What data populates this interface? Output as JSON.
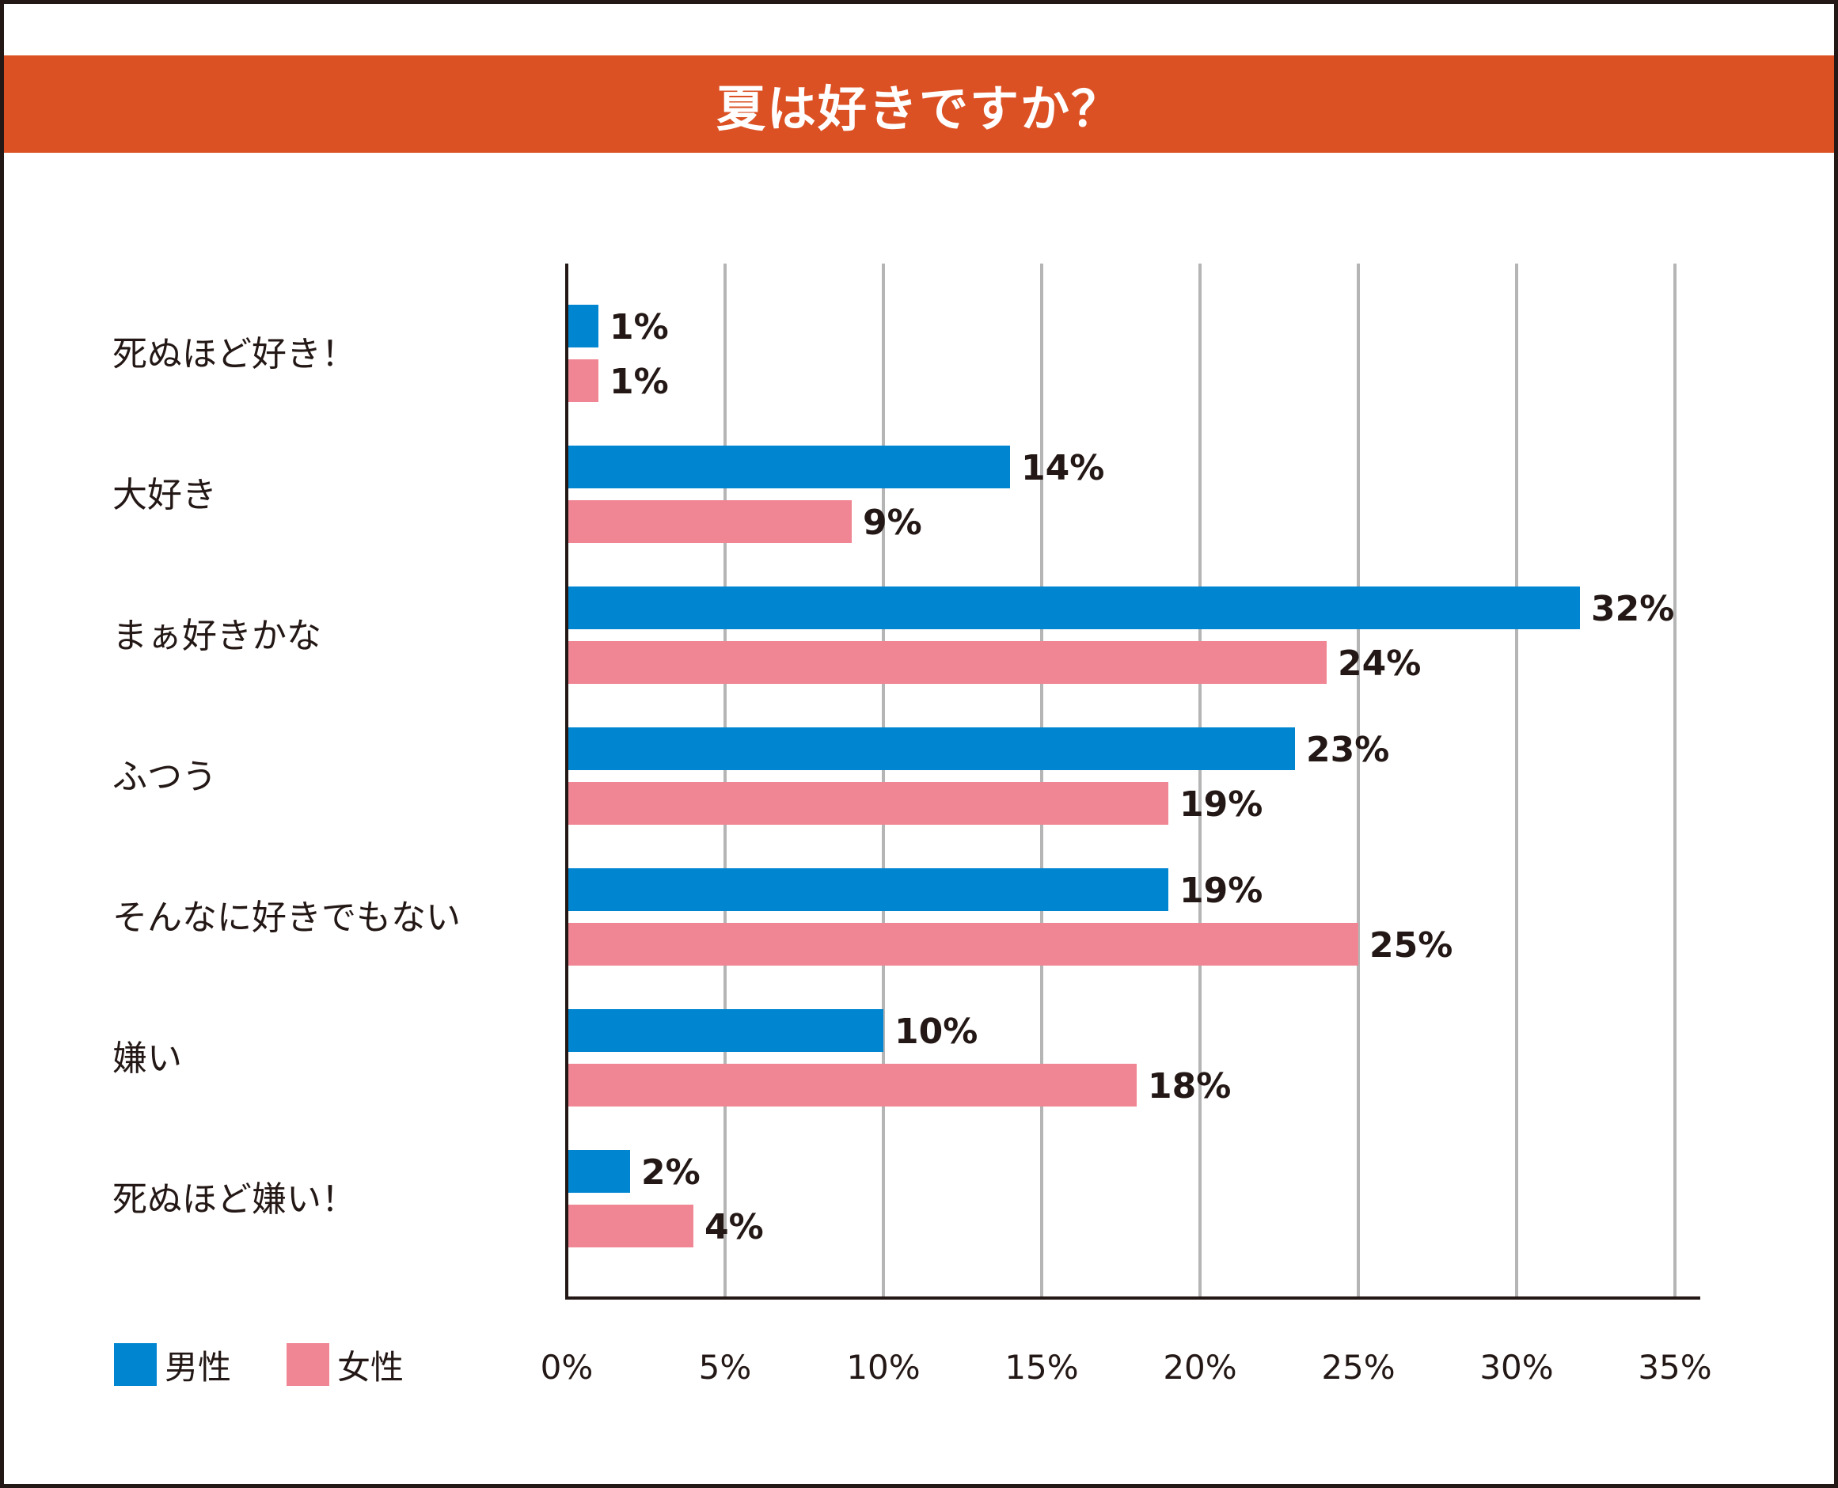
{
  "title": "夏は好きですか？",
  "colors": {
    "accent": "#db5124",
    "male": "#0086d1",
    "female": "#f08593",
    "grid": "#b5b5b5",
    "axis": "#231815"
  },
  "chart_data": {
    "type": "bar",
    "orientation": "horizontal",
    "title": "夏は好きですか？",
    "categories": [
      "死ぬほど好き！",
      "大好き",
      "まぁ好きかな",
      "ふつう",
      "そんなに好きでもない",
      "嫌い",
      "死ぬほど嫌い！"
    ],
    "series": [
      {
        "name": "男性",
        "color": "#0086d1",
        "values": [
          1,
          14,
          32,
          23,
          19,
          10,
          2
        ]
      },
      {
        "name": "女性",
        "color": "#f08593",
        "values": [
          1,
          9,
          24,
          19,
          25,
          18,
          4
        ]
      }
    ],
    "value_suffix": "%",
    "xlim": [
      0,
      35
    ],
    "ticks": [
      0,
      5,
      10,
      15,
      20,
      25,
      30,
      35
    ],
    "tick_labels": [
      "0%",
      "5%",
      "10%",
      "15%",
      "20%",
      "25%",
      "30%",
      "35%"
    ],
    "grid": true,
    "legend_position": "bottom-left"
  }
}
